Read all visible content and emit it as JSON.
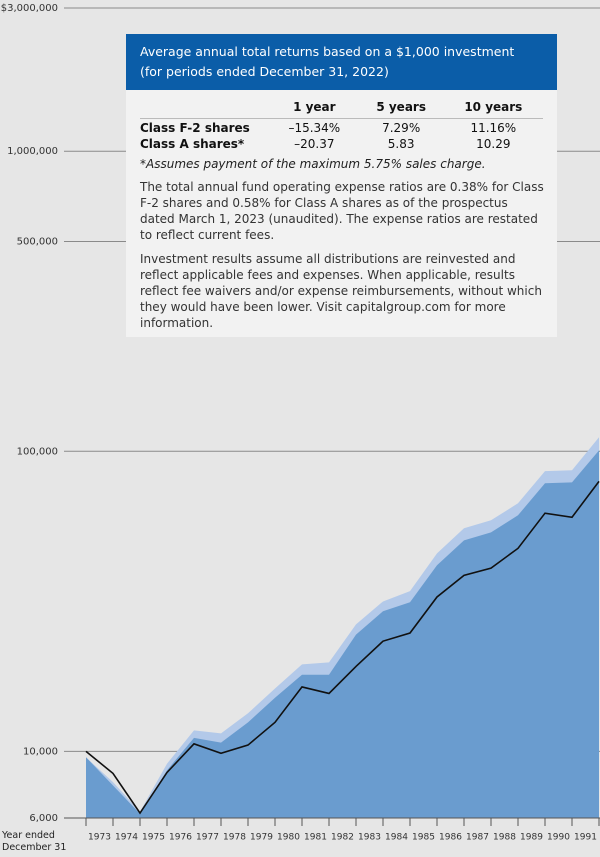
{
  "chart_data": {
    "type": "area",
    "categories": [
      null,
      "1973",
      "1974",
      "1975",
      "1976",
      "1977",
      "1978",
      "1979",
      "1980",
      "1981",
      "1982",
      "1983",
      "1984",
      "1985",
      "1986",
      "1987",
      "1988",
      "1989",
      "1990",
      "1991"
    ],
    "xlabel": "Year ended December 31",
    "log_scale": true,
    "grid": true,
    "ylim": [
      6000,
      3000000
    ],
    "yticks": [
      {
        "value": 6000,
        "label": "6,000"
      },
      {
        "value": 10000,
        "label": "10,000"
      },
      {
        "value": 100000,
        "label": "100,000"
      },
      {
        "value": 500000,
        "label": "500,000"
      },
      {
        "value": 1000000,
        "label": "1,000,000"
      },
      {
        "value": 3000000,
        "label": "$3,000,000"
      }
    ],
    "series": [
      {
        "color": "#b3c9e9",
        "style": "area",
        "values": [
          9560,
          7900,
          6300,
          9100,
          11750,
          11480,
          13400,
          16200,
          19500,
          19800,
          26500,
          31600,
          34200,
          45700,
          55400,
          58900,
          67100,
          85900,
          86500,
          111400
        ]
      },
      {
        "color": "#6a9ccf",
        "style": "area",
        "values": [
          9560,
          7700,
          6200,
          8650,
          11100,
          10700,
          12500,
          15100,
          18000,
          18000,
          24500,
          29300,
          31400,
          41700,
          50500,
          53700,
          61200,
          78300,
          78800,
          100700
        ]
      },
      {
        "color": "#111111",
        "style": "line",
        "values": [
          10000,
          8450,
          6230,
          8510,
          10600,
          9860,
          10500,
          12500,
          16400,
          15600,
          19200,
          23300,
          24800,
          32700,
          38600,
          40800,
          47500,
          62200,
          60300,
          79400
        ]
      }
    ]
  },
  "table": {
    "title": "Average annual total returns based on a $1,000 investment",
    "subtitle": "(for periods ended December 31, 2022)",
    "columns": [
      "1 year",
      "5 years",
      "10 years"
    ],
    "rows": [
      [
        "Class F-2 shares",
        "–15.34%",
        "7.29%",
        "11.16%"
      ],
      [
        "Class A shares*",
        "–20.37",
        "5.83",
        "10.29"
      ]
    ],
    "footnote": "*Assumes payment of the maximum 5.75% sales charge.",
    "notes": [
      "The total annual fund operating expense ratios are 0.38% for Class F-2 shares and 0.58% for Class A shares as of the prospectus dated March 1, 2023 (unaudited). The expense ratios are restated to reflect current fees.",
      "Investment results assume all distributions are reinvested and reflect applicable fees and expenses. When applicable, results reflect fee waivers and/or expense reimbursements, without which they would have been lower. Visit capitalgroup.com for more information."
    ]
  }
}
